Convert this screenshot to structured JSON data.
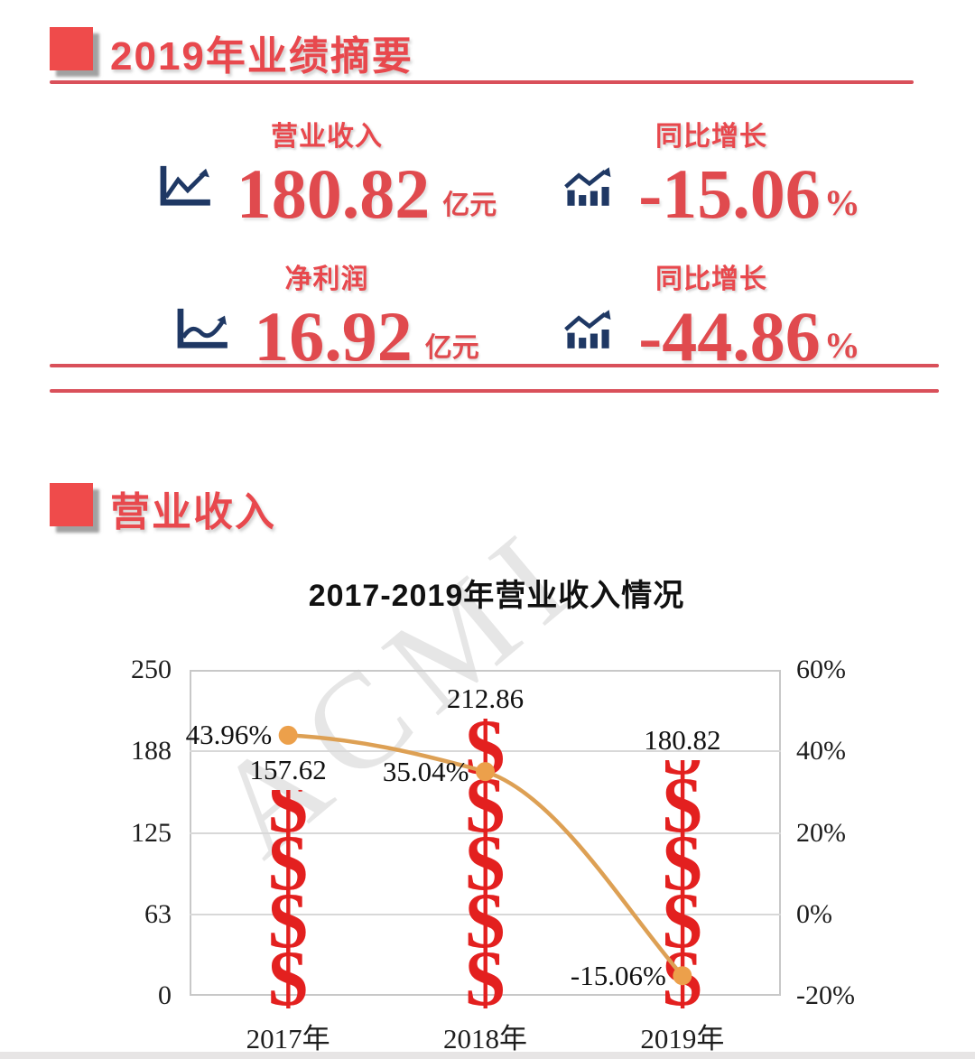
{
  "page": {
    "background": "#FFFFFF",
    "footer_strip_color": "#E7E5E5"
  },
  "colors": {
    "accent_red": "#E8484D",
    "square_red": "#EF4B4B",
    "divider_red": "#D9505A",
    "navy_icon": "#1F3864",
    "bar_red": "#E3201F",
    "line_orange": "#DDA054",
    "marker_orange": "#ECA04B",
    "watermark_gray": "#CFCFCF"
  },
  "summary": {
    "section_title": "2019年业绩摘要",
    "metrics": [
      {
        "label": "营业收入",
        "value": "180.82",
        "unit": "亿元",
        "icon": "line-chart-icon"
      },
      {
        "label": "同比增长",
        "value": "-15.06",
        "unit": "%",
        "icon": "bar-chart-growth-icon"
      },
      {
        "label": "净利润",
        "value": "16.92",
        "unit": "亿元",
        "icon": "line-chart-icon"
      },
      {
        "label": "同比增长",
        "value": "-44.86",
        "unit": "%",
        "icon": "bar-chart-growth-icon"
      }
    ]
  },
  "revenue": {
    "section_title": "营业收入"
  },
  "chart_data": {
    "type": "bar",
    "subtype": "pictograph-bar-plus-line-combo",
    "title": "2017-2019年营业收入情况",
    "categories": [
      "2017年",
      "2018年",
      "2019年"
    ],
    "series": [
      {
        "name": "营业收入",
        "type": "pictograph-bar",
        "unit": "亿元",
        "axis": "left",
        "glyph": "$",
        "values": [
          157.62,
          212.86,
          180.82
        ],
        "data_labels": [
          "157.62",
          "212.86",
          "180.82"
        ]
      },
      {
        "name": "同比增长",
        "type": "line",
        "unit": "%",
        "axis": "right",
        "values": [
          43.96,
          35.04,
          -15.06
        ],
        "data_labels": [
          "43.96%",
          "35.04%",
          "-15.06%"
        ]
      }
    ],
    "left_axis": {
      "min": 0,
      "max": 250,
      "ticks": [
        "250",
        "188",
        "125",
        "63",
        "0"
      ]
    },
    "right_axis": {
      "min": -20,
      "max": 60,
      "ticks": [
        "60%",
        "40%",
        "20%",
        "0%",
        "-20%"
      ]
    },
    "grid": true,
    "legend": "none",
    "watermark": "ACMI"
  }
}
